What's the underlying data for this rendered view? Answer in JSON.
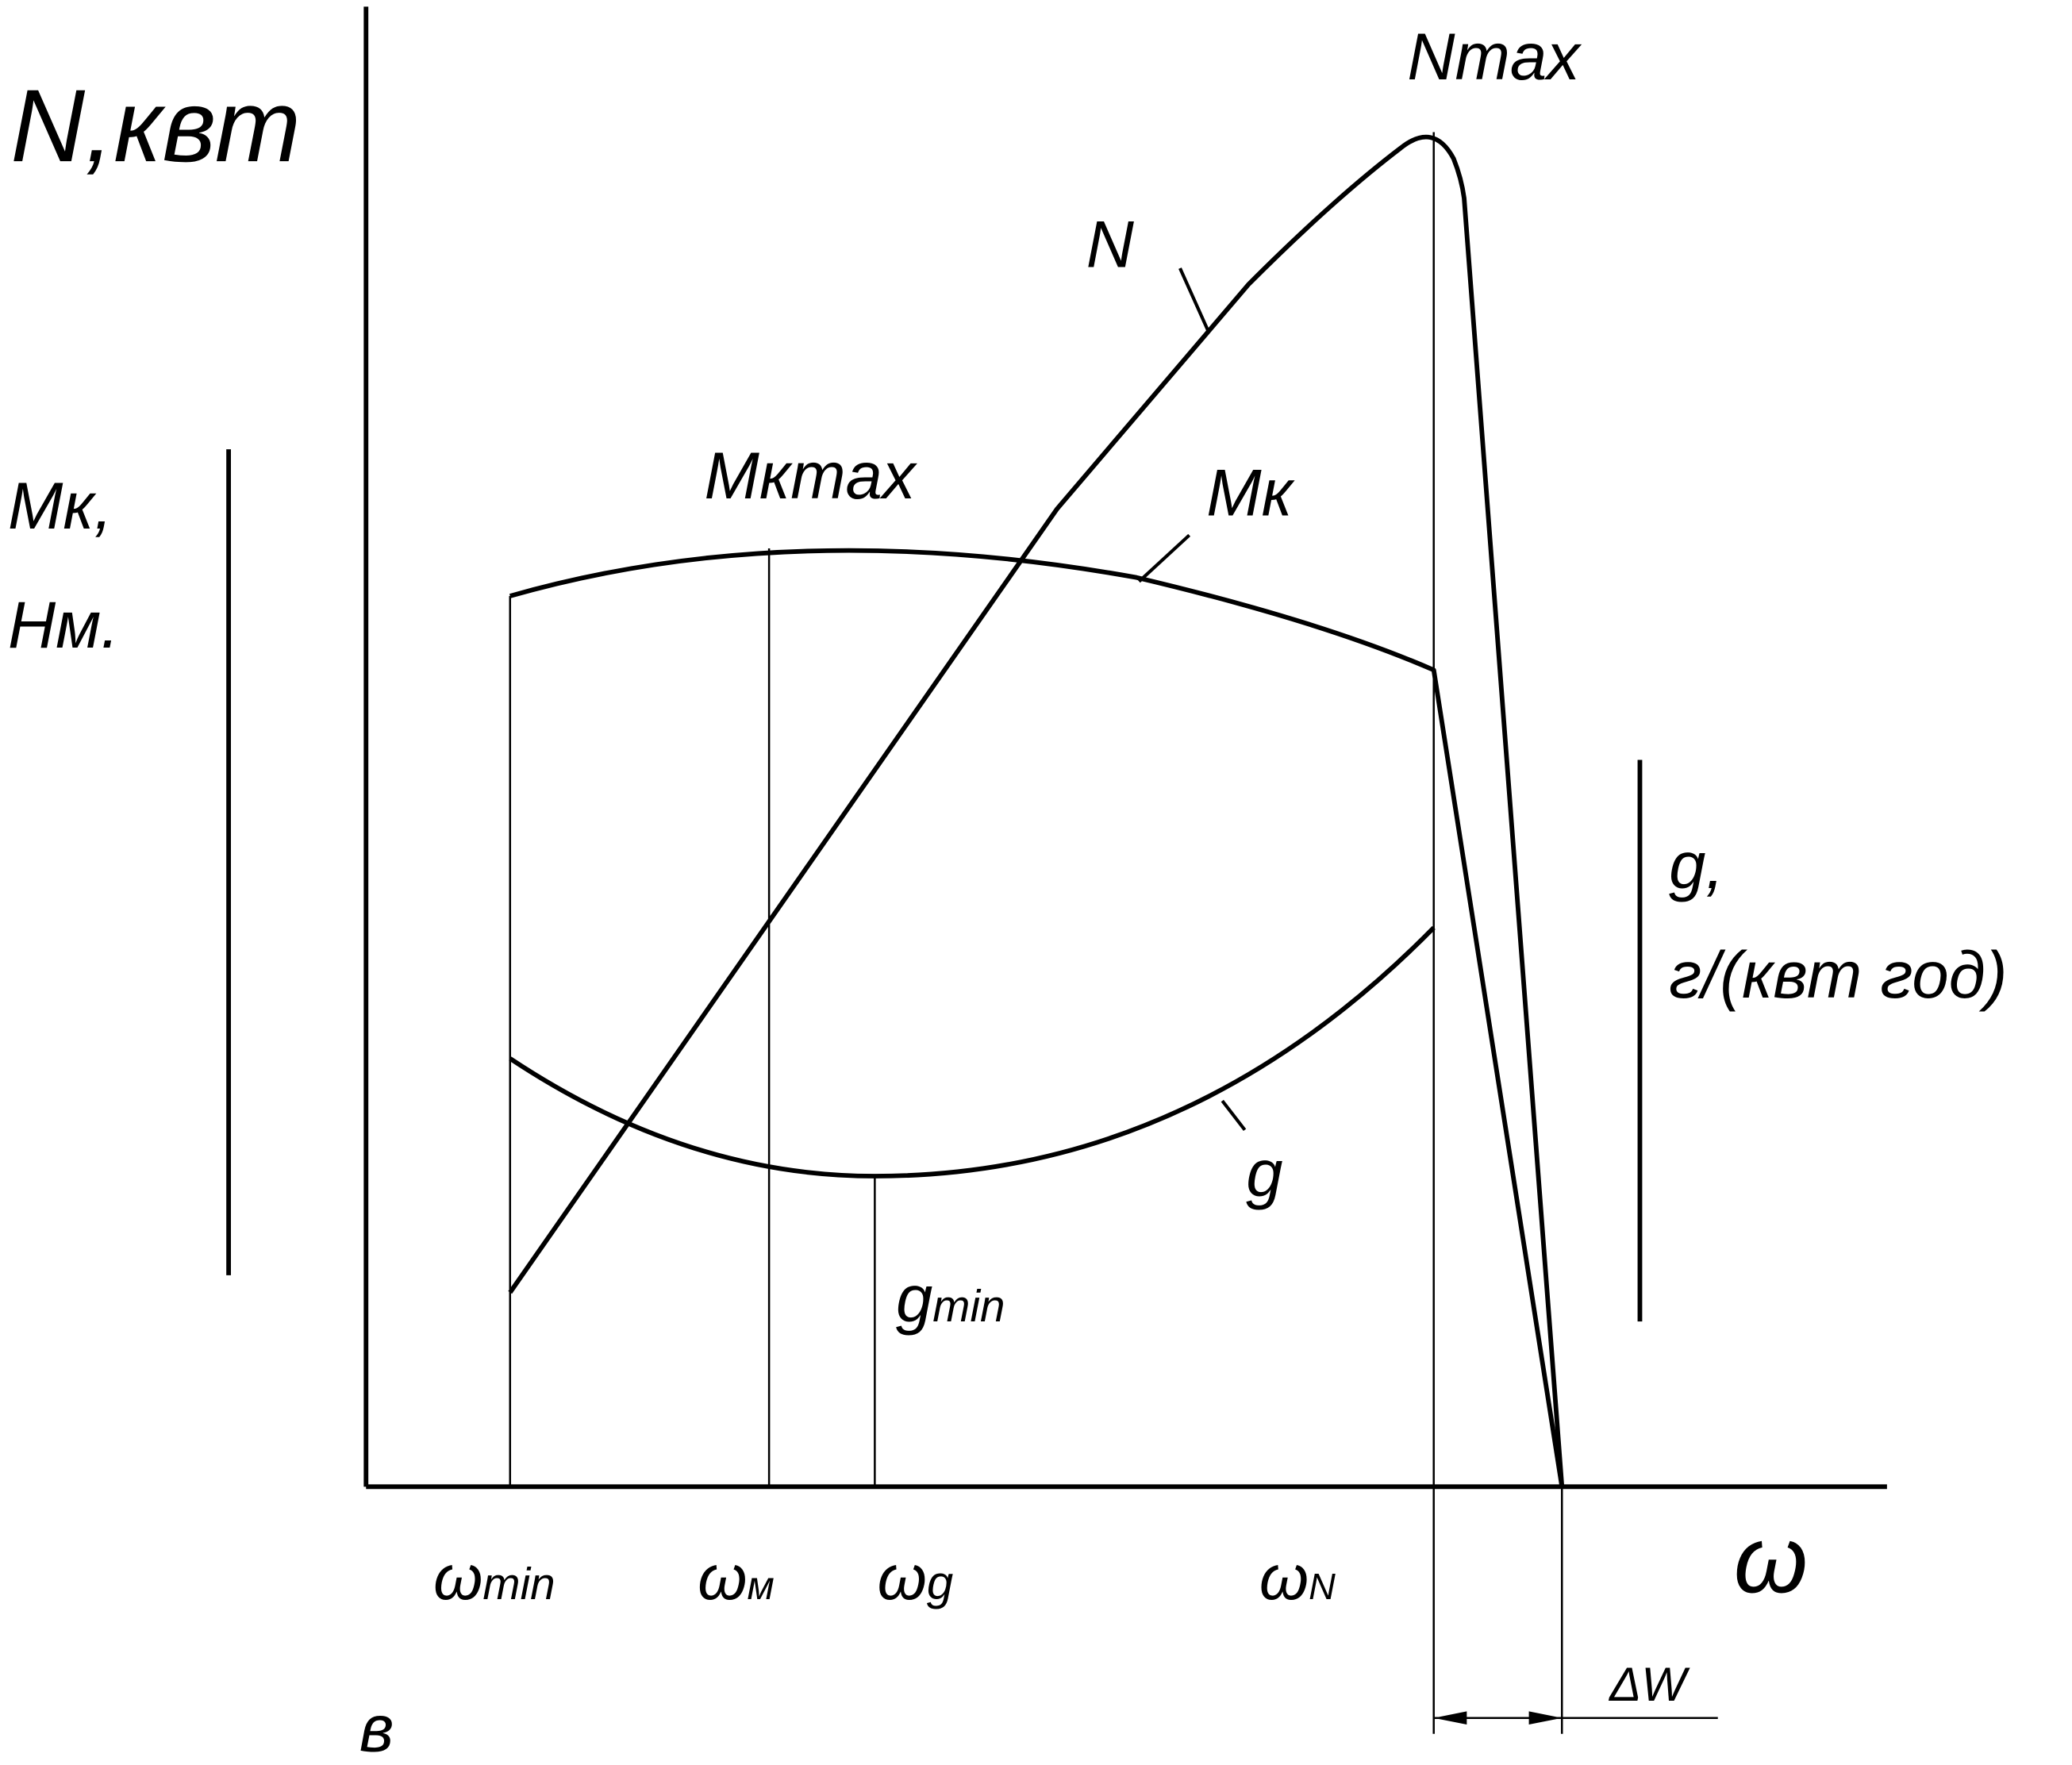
{
  "axes": {
    "y_label": "N,квт",
    "x_label": "ω",
    "left_label_1": "Mк,",
    "left_label_2": "Нм.",
    "right_label_1": "g,",
    "right_label_2": "г/(квт год)"
  },
  "curves": {
    "n_max": "Nmax",
    "n": "N",
    "mk_max": "Mкmax",
    "mk": "Mк",
    "g": "g"
  },
  "markers": {
    "g_min": {
      "main": "g",
      "sub": "min"
    },
    "omega_min": {
      "main": "ω",
      "sub": "min"
    },
    "omega_m": {
      "main": "ω",
      "sub": "м"
    },
    "omega_g": {
      "main": "ω",
      "sub": "g"
    },
    "omega_n": {
      "main": "ω",
      "sub": "N"
    },
    "delta_w": "ΔW"
  },
  "figure_letter": "в"
}
